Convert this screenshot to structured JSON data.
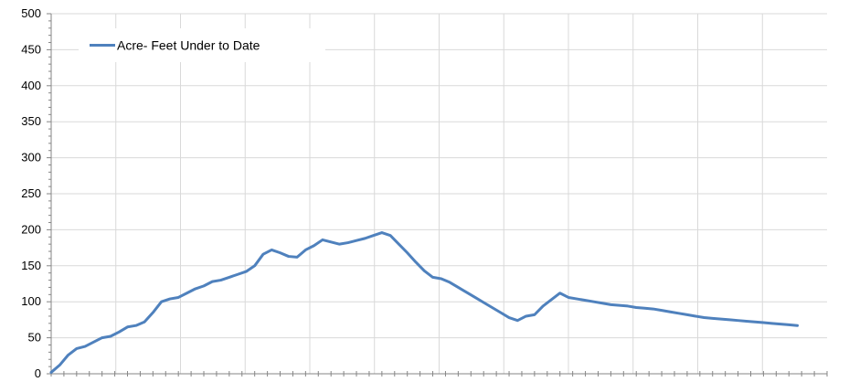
{
  "chart_data": {
    "type": "line",
    "title": "",
    "xlabel": "",
    "ylabel": "",
    "ylim": [
      0,
      500
    ],
    "yticks": [
      0,
      50,
      100,
      150,
      200,
      250,
      300,
      350,
      400,
      450,
      500
    ],
    "x_count": 366,
    "grid": true,
    "legend_position": "top-left",
    "series": [
      {
        "name": "Acre- Feet Under to Date",
        "color": "#4f81bd",
        "x": [
          0,
          4,
          8,
          12,
          16,
          20,
          24,
          28,
          32,
          36,
          40,
          44,
          48,
          52,
          56,
          60,
          64,
          68,
          72,
          76,
          80,
          84,
          88,
          92,
          96,
          100,
          104,
          108,
          112,
          116,
          120,
          124,
          128,
          132,
          136,
          140,
          144,
          148,
          152,
          156,
          160,
          164,
          168,
          172,
          176,
          180,
          184,
          188,
          192,
          196,
          200,
          204,
          208,
          212,
          216,
          220,
          224,
          228,
          232,
          236,
          240,
          244,
          248,
          252,
          256,
          260,
          264,
          268,
          272,
          276,
          280,
          284,
          288,
          292,
          296,
          300,
          304,
          308,
          312,
          316,
          320,
          324,
          328,
          332,
          336,
          340,
          344,
          348,
          352
        ],
        "values": [
          2,
          12,
          26,
          35,
          38,
          44,
          50,
          52,
          58,
          65,
          67,
          72,
          85,
          100,
          104,
          106,
          112,
          118,
          122,
          128,
          130,
          134,
          138,
          142,
          150,
          166,
          172,
          168,
          163,
          162,
          172,
          178,
          186,
          183,
          180,
          182,
          185,
          188,
          192,
          196,
          192,
          180,
          168,
          155,
          143,
          134,
          132,
          127,
          120,
          113,
          106,
          99,
          92,
          85,
          78,
          74,
          80,
          82,
          94,
          103,
          112,
          106,
          104,
          102,
          100,
          98,
          96,
          95,
          94,
          92,
          91,
          90,
          88,
          86,
          84,
          82,
          80,
          78,
          77,
          76,
          75,
          74,
          73,
          72,
          71,
          70,
          69,
          68,
          67
        ]
      }
    ]
  }
}
